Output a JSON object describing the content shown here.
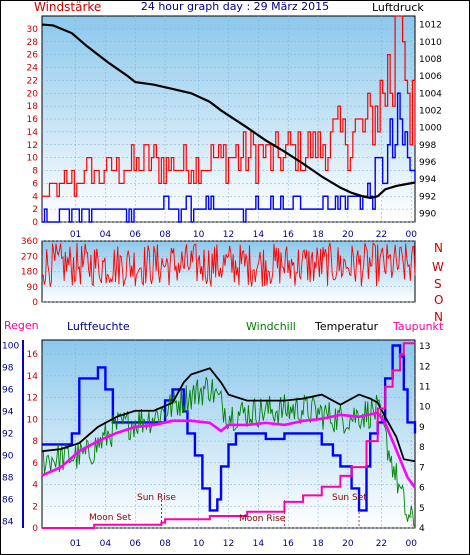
{
  "header": {
    "left_label": "Windstärke",
    "title": "24 hour graph day : 29 März 2015",
    "right_label": "Luftdruck"
  },
  "legend": {
    "regen": "Regen",
    "luftfeuchte": "Luftfeuchte",
    "windchill": "Windchill",
    "temperatur": "Temperatur",
    "taupunkt": "Taupunkt"
  },
  "annotations": {
    "moon_set": "Moon Set",
    "sun_rise": "Sun Rise",
    "moon_rise": "Moon Rise",
    "sun_set": "Sun Set"
  },
  "direction_labels": [
    "N",
    "W",
    "S",
    "O",
    "N"
  ],
  "colors": {
    "wind": "#ff0000",
    "gust": "#0000ff",
    "pressure": "#000000",
    "temperature": "#000000",
    "windchill": "#008000",
    "dewpoint": "#ff00ff",
    "humidity": "#0000ff",
    "rain": "#ff00aa",
    "plot_top": "#a8d4ee",
    "plot_bottom": "#ffffff"
  },
  "chart_data": [
    {
      "type": "line",
      "title": "24 hour graph day : 29 März 2015",
      "x_ticks": [
        "01",
        "04",
        "06",
        "08",
        "10",
        "12",
        "14",
        "16",
        "18",
        "20",
        "22",
        "00"
      ],
      "left_axis": {
        "label": "Windstärke",
        "ticks": [
          0,
          2,
          4,
          6,
          8,
          10,
          12,
          14,
          16,
          18,
          20,
          22,
          24,
          26,
          28,
          30
        ],
        "range": [
          0,
          32
        ]
      },
      "right_axis": {
        "label": "Luftdruck",
        "ticks": [
          990,
          992,
          994,
          996,
          998,
          1000,
          1002,
          1004,
          1006,
          1008,
          1010,
          1012
        ],
        "range": [
          989,
          1013
        ]
      },
      "series": [
        {
          "name": "Windstärke",
          "axis": "left",
          "style": "step",
          "keypoints": [
            [
              0,
              4
            ],
            [
              0.08,
              6
            ],
            [
              0.18,
              8
            ],
            [
              0.3,
              9
            ],
            [
              0.45,
              9
            ],
            [
              0.55,
              10
            ],
            [
              0.65,
              10
            ],
            [
              0.72,
              11
            ],
            [
              0.8,
              12
            ],
            [
              0.88,
              15
            ],
            [
              0.93,
              22
            ],
            [
              0.96,
              24
            ],
            [
              1,
              14
            ]
          ],
          "spike_to": 32
        },
        {
          "name": "Gust",
          "axis": "left",
          "style": "step",
          "keypoints": [
            [
              0,
              1
            ],
            [
              0.3,
              2
            ],
            [
              0.6,
              2
            ],
            [
              0.8,
              3
            ],
            [
              0.88,
              5
            ],
            [
              0.93,
              10
            ],
            [
              0.96,
              14
            ],
            [
              1,
              5
            ]
          ]
        },
        {
          "name": "Luftdruck",
          "axis": "right",
          "style": "line",
          "x": [
            0,
            0.03,
            0.08,
            0.12,
            0.18,
            0.23,
            0.25,
            0.3,
            0.35,
            0.4,
            0.45,
            0.48,
            0.55,
            0.6,
            0.65,
            0.7,
            0.75,
            0.8,
            0.83,
            0.86,
            0.88,
            0.9,
            0.92,
            0.95,
            1.0
          ],
          "y": [
            1012,
            1011.9,
            1011,
            1009.5,
            1007.5,
            1006,
            1005.3,
            1005,
            1004.5,
            1004,
            1003,
            1002,
            1000,
            998.5,
            997.2,
            995.8,
            994.3,
            993,
            992.4,
            992,
            991.8,
            992,
            992.8,
            993.2,
            993.6
          ]
        }
      ]
    },
    {
      "type": "line",
      "title": "",
      "left_axis": {
        "label": "",
        "ticks": [
          0,
          90,
          180,
          270,
          360
        ],
        "range": [
          0,
          360
        ]
      },
      "right_axis": {
        "label": "",
        "ticks": [
          "N",
          "W",
          "S",
          "O",
          "N"
        ]
      },
      "series": [
        {
          "name": "Windrichtung",
          "style": "noise",
          "mean": 220,
          "spread": 130
        }
      ]
    },
    {
      "type": "line",
      "title": "",
      "x_ticks": [
        "01",
        "04",
        "06",
        "08",
        "10",
        "12",
        "14",
        "16",
        "18",
        "20",
        "22",
        "00"
      ],
      "axes": {
        "humidity": {
          "label": "Luftfeuchte",
          "ticks": [
            84,
            86,
            88,
            90,
            92,
            94,
            96,
            98,
            100
          ],
          "range": [
            83.4,
            100.5
          ]
        },
        "rain": {
          "label": "Regen",
          "ticks": [
            0,
            2,
            4,
            6,
            8,
            10,
            12,
            14,
            16
          ],
          "range": [
            0,
            17.3
          ]
        },
        "temperature": {
          "label": "Temperatur",
          "ticks": [
            4,
            5,
            6,
            7,
            8,
            9,
            10,
            11,
            12,
            13
          ],
          "range": [
            4,
            13.3
          ]
        }
      },
      "series": [
        {
          "name": "Temperatur",
          "axis": "temperature",
          "x": [
            0,
            0.05,
            0.1,
            0.15,
            0.2,
            0.25,
            0.3,
            0.35,
            0.38,
            0.4,
            0.45,
            0.48,
            0.5,
            0.55,
            0.6,
            0.65,
            0.7,
            0.75,
            0.8,
            0.85,
            0.88,
            0.9,
            0.92,
            0.95,
            0.97,
            1.0
          ],
          "y": [
            7.8,
            7.9,
            8.2,
            9.0,
            9.5,
            9.8,
            9.8,
            10.2,
            11.2,
            11.6,
            11.9,
            11.2,
            10.6,
            10.3,
            10.3,
            10.3,
            10.4,
            10.6,
            10.1,
            10.6,
            10.4,
            10.2,
            9.5,
            8.5,
            7.4,
            7.3
          ]
        },
        {
          "name": "Windchill",
          "axis": "temperature",
          "keypoints": [
            [
              0,
              7.4
            ],
            [
              0.12,
              7.6
            ],
            [
              0.2,
              9.0
            ],
            [
              0.3,
              9.5
            ],
            [
              0.38,
              10.4
            ],
            [
              0.45,
              11.0
            ],
            [
              0.5,
              9.6
            ],
            [
              0.6,
              9.8
            ],
            [
              0.7,
              9.9
            ],
            [
              0.8,
              9.4
            ],
            [
              0.85,
              9.6
            ],
            [
              0.9,
              9.8
            ],
            [
              0.92,
              8.5
            ],
            [
              0.95,
              6.5
            ],
            [
              0.98,
              4.5
            ],
            [
              1.0,
              4.2
            ]
          ],
          "noise": 0.8
        },
        {
          "name": "Taupunkt",
          "axis": "temperature",
          "x": [
            0,
            0.05,
            0.1,
            0.15,
            0.2,
            0.25,
            0.3,
            0.35,
            0.4,
            0.45,
            0.48,
            0.5,
            0.55,
            0.6,
            0.65,
            0.7,
            0.75,
            0.8,
            0.85,
            0.9,
            0.92,
            0.94,
            0.96,
            0.98,
            1.0
          ],
          "y": [
            6.6,
            7.0,
            7.8,
            8.3,
            8.7,
            9.0,
            9.1,
            9.3,
            9.3,
            9.2,
            8.8,
            9.1,
            9.1,
            9.2,
            9.1,
            9.3,
            9.4,
            9.6,
            9.5,
            9.7,
            9.2,
            8.3,
            7.4,
            6.5,
            6.0
          ]
        },
        {
          "name": "Luftfeuchte",
          "axis": "humidity",
          "style": "step",
          "keypoints": [
            [
              0,
              91
            ],
            [
              0.05,
              91
            ],
            [
              0.08,
              92
            ],
            [
              0.1,
              97
            ],
            [
              0.15,
              98
            ],
            [
              0.17,
              96
            ],
            [
              0.19,
              93
            ],
            [
              0.2,
              93
            ],
            [
              0.3,
              93
            ],
            [
              0.33,
              95
            ],
            [
              0.35,
              96
            ],
            [
              0.38,
              94
            ],
            [
              0.39,
              92
            ],
            [
              0.41,
              90
            ],
            [
              0.43,
              87
            ],
            [
              0.45,
              85
            ],
            [
              0.47,
              86
            ],
            [
              0.48,
              89
            ],
            [
              0.5,
              91
            ],
            [
              0.52,
              92
            ],
            [
              0.55,
              92
            ],
            [
              0.6,
              91.5
            ],
            [
              0.65,
              92
            ],
            [
              0.7,
              92
            ],
            [
              0.75,
              91
            ],
            [
              0.78,
              90
            ],
            [
              0.8,
              89
            ],
            [
              0.83,
              87
            ],
            [
              0.85,
              85
            ],
            [
              0.87,
              89
            ],
            [
              0.88,
              92
            ],
            [
              0.9,
              93
            ],
            [
              0.92,
              97
            ],
            [
              0.94,
              100
            ],
            [
              0.96,
              99
            ],
            [
              0.97,
              96
            ],
            [
              0.98,
              93
            ],
            [
              1.0,
              92
            ]
          ]
        },
        {
          "name": "Regen",
          "axis": "rain",
          "style": "step",
          "keypoints": [
            [
              0,
              0
            ],
            [
              0.14,
              0.3
            ],
            [
              0.32,
              0.5
            ],
            [
              0.33,
              0.8
            ],
            [
              0.45,
              1.1
            ],
            [
              0.55,
              1.5
            ],
            [
              0.65,
              2.4
            ],
            [
              0.7,
              3.0
            ],
            [
              0.75,
              3.8
            ],
            [
              0.8,
              4.8
            ],
            [
              0.83,
              5.6
            ],
            [
              0.87,
              8.0
            ],
            [
              0.9,
              11.0
            ],
            [
              0.92,
              13.0
            ],
            [
              0.94,
              14.5
            ],
            [
              0.96,
              16.0
            ],
            [
              0.97,
              17.0
            ],
            [
              1.0,
              17.0
            ]
          ]
        }
      ],
      "events": [
        {
          "label": "Moon Set",
          "x": 0.32
        },
        {
          "label": "Sun Rise",
          "x": 0.32
        },
        {
          "label": "Moon Rise",
          "x": 0.65
        },
        {
          "label": "Sun Set",
          "x": 0.85
        }
      ]
    }
  ]
}
